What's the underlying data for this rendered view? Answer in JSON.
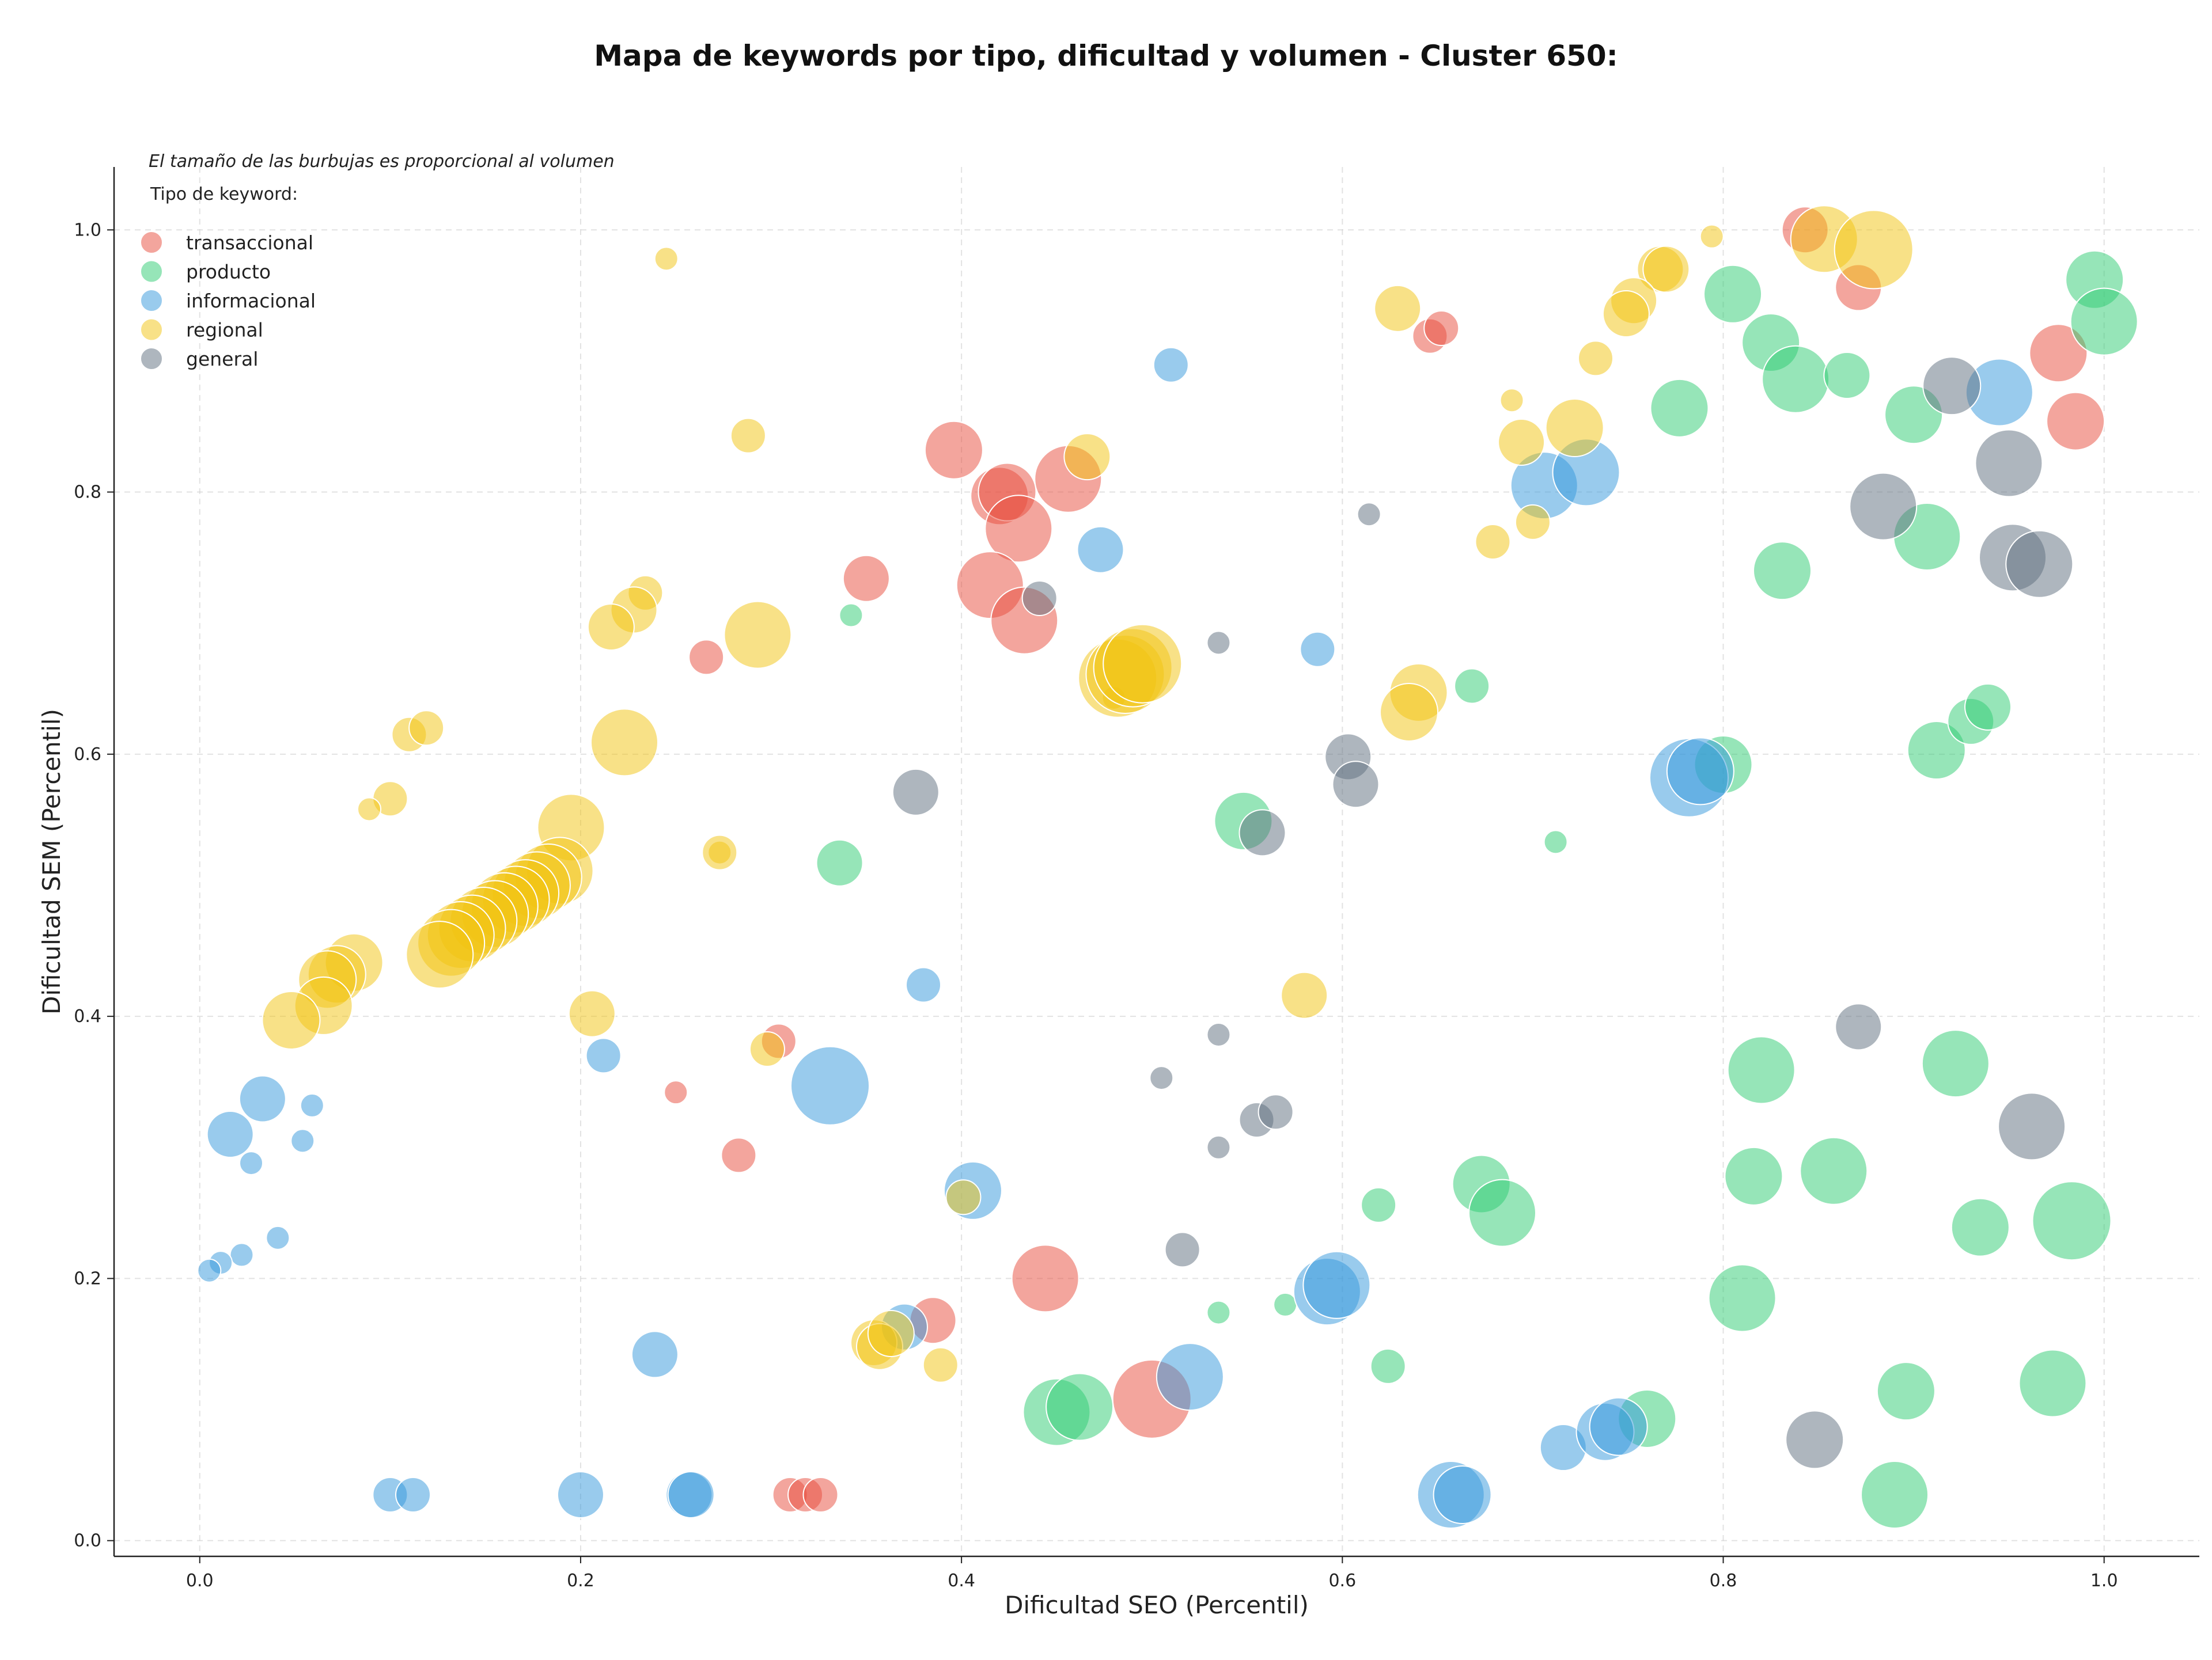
{
  "chart_data": {
    "type": "scatter",
    "title": "Mapa de keywords por tipo, dificultad y volumen - Cluster 650:",
    "xlabel": "Dificultad SEO (Percentil)",
    "ylabel": "Dificultad SEM (Percentil)",
    "xlim": [
      -0.045,
      1.05
    ],
    "ylim": [
      -0.012,
      1.048
    ],
    "xticks": [
      "0.0",
      "0.2",
      "0.4",
      "0.6",
      "0.8",
      "1.0"
    ],
    "yticks": [
      "0.0",
      "0.2",
      "0.4",
      "0.6",
      "0.8",
      "1.0"
    ],
    "grid": true,
    "note": "El tamaño de las burbujas es proporcional al volumen",
    "legend": {
      "title": "Tipo de keyword:",
      "placement": "top-left"
    },
    "series": [
      {
        "name": "transaccional",
        "color": "#e74c3c",
        "points": [
          [
            0.843,
            1.0,
            3
          ],
          [
            0.871,
            0.956,
            3
          ],
          [
            0.976,
            0.906,
            4
          ],
          [
            0.985,
            0.854,
            4
          ],
          [
            0.646,
            0.919,
            2
          ],
          [
            0.652,
            0.925,
            2
          ],
          [
            0.396,
            0.832,
            4
          ],
          [
            0.42,
            0.797,
            4
          ],
          [
            0.424,
            0.8,
            4
          ],
          [
            0.43,
            0.772,
            5
          ],
          [
            0.456,
            0.81,
            5
          ],
          [
            0.35,
            0.734,
            3
          ],
          [
            0.415,
            0.729,
            5
          ],
          [
            0.433,
            0.702,
            5
          ],
          [
            0.266,
            0.674,
            2
          ],
          [
            0.304,
            0.381,
            2
          ],
          [
            0.25,
            0.342,
            1
          ],
          [
            0.283,
            0.294,
            2
          ],
          [
            0.444,
            0.2,
            5
          ],
          [
            0.385,
            0.168,
            3
          ],
          [
            0.5,
            0.108,
            6
          ],
          [
            0.31,
            0.035,
            2
          ],
          [
            0.318,
            0.035,
            2
          ],
          [
            0.326,
            0.035,
            2
          ]
        ]
      },
      {
        "name": "producto",
        "color": "#2ecc71",
        "points": [
          [
            0.995,
            0.962,
            4
          ],
          [
            1.0,
            0.93,
            5
          ],
          [
            0.805,
            0.951,
            4
          ],
          [
            0.825,
            0.914,
            4
          ],
          [
            0.838,
            0.886,
            5
          ],
          [
            0.865,
            0.889,
            3
          ],
          [
            0.777,
            0.864,
            4
          ],
          [
            0.9,
            0.859,
            4
          ],
          [
            0.907,
            0.766,
            5
          ],
          [
            0.831,
            0.74,
            4
          ],
          [
            0.8,
            0.592,
            4
          ],
          [
            0.912,
            0.603,
            4
          ],
          [
            0.93,
            0.625,
            3
          ],
          [
            0.939,
            0.636,
            3
          ],
          [
            0.668,
            0.652,
            2
          ],
          [
            0.548,
            0.549,
            4
          ],
          [
            0.336,
            0.517,
            3
          ],
          [
            0.342,
            0.706,
            1
          ],
          [
            0.712,
            0.533,
            1
          ],
          [
            0.82,
            0.359,
            5
          ],
          [
            0.922,
            0.364,
            5
          ],
          [
            0.816,
            0.278,
            4
          ],
          [
            0.858,
            0.282,
            5
          ],
          [
            0.673,
            0.272,
            4
          ],
          [
            0.684,
            0.25,
            5
          ],
          [
            0.935,
            0.239,
            4
          ],
          [
            0.983,
            0.244,
            6
          ],
          [
            0.619,
            0.256,
            2
          ],
          [
            0.81,
            0.185,
            5
          ],
          [
            0.57,
            0.18,
            1
          ],
          [
            0.535,
            0.174,
            1
          ],
          [
            0.624,
            0.133,
            2
          ],
          [
            0.896,
            0.114,
            4
          ],
          [
            0.973,
            0.12,
            5
          ],
          [
            0.45,
            0.098,
            5
          ],
          [
            0.462,
            0.102,
            5
          ],
          [
            0.76,
            0.093,
            4
          ],
          [
            0.89,
            0.035,
            5
          ]
        ]
      },
      {
        "name": "informacional",
        "color": "#3498db",
        "points": [
          [
            0.51,
            0.897,
            2
          ],
          [
            0.945,
            0.876,
            5
          ],
          [
            0.706,
            0.805,
            5
          ],
          [
            0.728,
            0.815,
            5
          ],
          [
            0.473,
            0.756,
            3
          ],
          [
            0.587,
            0.68,
            2
          ],
          [
            0.782,
            0.582,
            6
          ],
          [
            0.788,
            0.587,
            5
          ],
          [
            0.38,
            0.424,
            2
          ],
          [
            0.212,
            0.37,
            2
          ],
          [
            0.331,
            0.347,
            6
          ],
          [
            0.033,
            0.337,
            3
          ],
          [
            0.016,
            0.31,
            3
          ],
          [
            0.059,
            0.332,
            1
          ],
          [
            0.054,
            0.305,
            1
          ],
          [
            0.027,
            0.288,
            1
          ],
          [
            0.406,
            0.267,
            4
          ],
          [
            0.041,
            0.231,
            1
          ],
          [
            0.022,
            0.218,
            1
          ],
          [
            0.011,
            0.212,
            1
          ],
          [
            0.005,
            0.206,
            1
          ],
          [
            0.592,
            0.19,
            5
          ],
          [
            0.597,
            0.195,
            5
          ],
          [
            0.37,
            0.163,
            3
          ],
          [
            0.239,
            0.142,
            3
          ],
          [
            0.52,
            0.125,
            5
          ],
          [
            0.716,
            0.071,
            3
          ],
          [
            0.738,
            0.083,
            4
          ],
          [
            0.745,
            0.087,
            4
          ],
          [
            0.1,
            0.035,
            2
          ],
          [
            0.112,
            0.035,
            2
          ],
          [
            0.2,
            0.035,
            3
          ],
          [
            0.257,
            0.035,
            3
          ],
          [
            0.258,
            0.035,
            3
          ],
          [
            0.657,
            0.035,
            5
          ],
          [
            0.663,
            0.035,
            4
          ]
        ]
      },
      {
        "name": "regional",
        "color": "#f1c40f",
        "points": [
          [
            0.245,
            0.978,
            1
          ],
          [
            0.794,
            0.995,
            1
          ],
          [
            0.853,
            0.993,
            5
          ],
          [
            0.879,
            0.985,
            6
          ],
          [
            0.767,
            0.97,
            3
          ],
          [
            0.77,
            0.97,
            3
          ],
          [
            0.629,
            0.94,
            3
          ],
          [
            0.753,
            0.946,
            3
          ],
          [
            0.749,
            0.936,
            3
          ],
          [
            0.733,
            0.902,
            2
          ],
          [
            0.689,
            0.87,
            1
          ],
          [
            0.694,
            0.838,
            3
          ],
          [
            0.722,
            0.849,
            4
          ],
          [
            0.466,
            0.827,
            3
          ],
          [
            0.288,
            0.843,
            2
          ],
          [
            0.679,
            0.762,
            2
          ],
          [
            0.7,
            0.777,
            2
          ],
          [
            0.234,
            0.723,
            2
          ],
          [
            0.228,
            0.71,
            3
          ],
          [
            0.216,
            0.697,
            3
          ],
          [
            0.293,
            0.691,
            5
          ],
          [
            0.48,
            0.643,
            1
          ],
          [
            0.482,
            0.658,
            6
          ],
          [
            0.486,
            0.661,
            6
          ],
          [
            0.49,
            0.666,
            6
          ],
          [
            0.495,
            0.669,
            6
          ],
          [
            0.64,
            0.647,
            4
          ],
          [
            0.635,
            0.632,
            4
          ],
          [
            0.11,
            0.615,
            2
          ],
          [
            0.119,
            0.62,
            2
          ],
          [
            0.223,
            0.609,
            5
          ],
          [
            0.1,
            0.566,
            2
          ],
          [
            0.089,
            0.558,
            1
          ],
          [
            0.195,
            0.544,
            5
          ],
          [
            0.189,
            0.511,
            5
          ],
          [
            0.183,
            0.506,
            5
          ],
          [
            0.177,
            0.5,
            5
          ],
          [
            0.171,
            0.494,
            5
          ],
          [
            0.166,
            0.489,
            5
          ],
          [
            0.16,
            0.484,
            5
          ],
          [
            0.155,
            0.478,
            5
          ],
          [
            0.149,
            0.473,
            5
          ],
          [
            0.143,
            0.467,
            5
          ],
          [
            0.137,
            0.462,
            5
          ],
          [
            0.132,
            0.456,
            5
          ],
          [
            0.126,
            0.447,
            5
          ],
          [
            0.081,
            0.441,
            4
          ],
          [
            0.072,
            0.432,
            4
          ],
          [
            0.067,
            0.428,
            4
          ],
          [
            0.065,
            0.408,
            4
          ],
          [
            0.048,
            0.397,
            4
          ],
          [
            0.273,
            0.525,
            1
          ],
          [
            0.273,
            0.525,
            2
          ],
          [
            0.58,
            0.416,
            3
          ],
          [
            0.206,
            0.402,
            3
          ],
          [
            0.298,
            0.375,
            2
          ],
          [
            0.401,
            0.262,
            2
          ],
          [
            0.354,
            0.151,
            3
          ],
          [
            0.357,
            0.148,
            3
          ],
          [
            0.363,
            0.158,
            3
          ],
          [
            0.389,
            0.134,
            2
          ]
        ]
      },
      {
        "name": "general",
        "color": "#5d6d7e",
        "points": [
          [
            0.92,
            0.881,
            4
          ],
          [
            0.95,
            0.822,
            5
          ],
          [
            0.884,
            0.789,
            5
          ],
          [
            0.952,
            0.75,
            5
          ],
          [
            0.966,
            0.745,
            5
          ],
          [
            0.614,
            0.783,
            1
          ],
          [
            0.441,
            0.719,
            2
          ],
          [
            0.535,
            0.685,
            1
          ],
          [
            0.376,
            0.571,
            3
          ],
          [
            0.603,
            0.598,
            3
          ],
          [
            0.607,
            0.577,
            3
          ],
          [
            0.558,
            0.54,
            3
          ],
          [
            0.871,
            0.392,
            3
          ],
          [
            0.535,
            0.386,
            1
          ],
          [
            0.505,
            0.353,
            1
          ],
          [
            0.555,
            0.321,
            2
          ],
          [
            0.565,
            0.327,
            2
          ],
          [
            0.962,
            0.316,
            5
          ],
          [
            0.535,
            0.3,
            1
          ],
          [
            0.516,
            0.222,
            2
          ],
          [
            0.848,
            0.077,
            4
          ]
        ]
      }
    ]
  }
}
